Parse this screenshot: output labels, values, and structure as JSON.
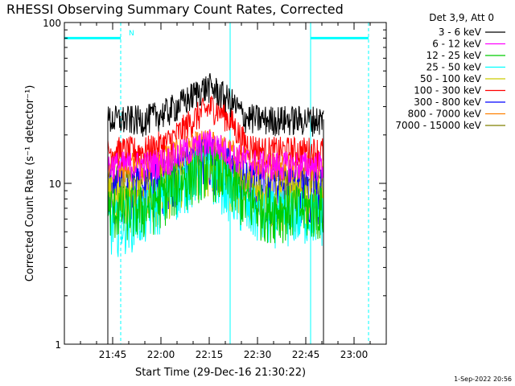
{
  "chart_data": {
    "type": "line",
    "title": "RHESSI Observing Summary Count Rates, Corrected",
    "xlabel": "Start Time (29-Dec-16 21:30:22)",
    "ylabel": "Corrected Count Rate (s⁻¹ detector⁻¹)",
    "y_scale": "log",
    "ylim": [
      1,
      100
    ],
    "xlim_minutes": [
      0,
      100
    ],
    "x_ticks": [
      {
        "label": "21:45",
        "minute": 15
      },
      {
        "label": "22:00",
        "minute": 30
      },
      {
        "label": "22:15",
        "minute": 45
      },
      {
        "label": "22:30",
        "minute": 60
      },
      {
        "label": "22:45",
        "minute": 75
      },
      {
        "label": "23:00",
        "minute": 90
      }
    ],
    "y_ticks": [
      {
        "label": "1",
        "value": 1
      },
      {
        "label": "10",
        "value": 10
      },
      {
        "label": "100",
        "value": 100
      }
    ],
    "legend_title": "Det 3,9, Att 0",
    "legend_location": "top-right-outside",
    "annotation_n": "N",
    "timestamp": "1-Sep-2022 20:56",
    "markers": {
      "solid_lines_minutes": [
        0,
        51.5,
        76.5
      ],
      "dashed_lines_minutes": [
        17.5,
        94.5
      ],
      "night_bars": [
        {
          "start": 0,
          "end": 17.5,
          "value": 80
        },
        {
          "start": 76.5,
          "end": 94.5,
          "value": 80
        }
      ],
      "color": "#00ffff"
    },
    "data_window_minutes": [
      13.5,
      80.5
    ],
    "series": [
      {
        "name": "3 - 6 keV",
        "color": "#000000",
        "points": [
          [
            14,
            25
          ],
          [
            25,
            25
          ],
          [
            32,
            28
          ],
          [
            38,
            33
          ],
          [
            42,
            38
          ],
          [
            45,
            40
          ],
          [
            48,
            37
          ],
          [
            52,
            32
          ],
          [
            56,
            26
          ],
          [
            62,
            25
          ],
          [
            72,
            25
          ],
          [
            80,
            25
          ]
        ]
      },
      {
        "name": "6 - 12 keV",
        "color": "#ff00ff",
        "points": [
          [
            14,
            13
          ],
          [
            25,
            13
          ],
          [
            32,
            14
          ],
          [
            38,
            16
          ],
          [
            42,
            17
          ],
          [
            45,
            18
          ],
          [
            48,
            17
          ],
          [
            52,
            15
          ],
          [
            56,
            14
          ],
          [
            62,
            13
          ],
          [
            80,
            13
          ]
        ]
      },
      {
        "name": "12 - 25 keV",
        "color": "#00cc00",
        "points": [
          [
            14,
            7
          ],
          [
            25,
            7
          ],
          [
            32,
            9
          ],
          [
            38,
            11
          ],
          [
            42,
            12.5
          ],
          [
            45,
            13
          ],
          [
            48,
            12
          ],
          [
            52,
            10
          ],
          [
            56,
            8
          ],
          [
            62,
            7
          ],
          [
            80,
            7
          ]
        ]
      },
      {
        "name": "25 - 50 keV",
        "color": "#00ffff",
        "points": [
          [
            14,
            5.5
          ],
          [
            25,
            6.5
          ],
          [
            32,
            8.5
          ],
          [
            38,
            10.5
          ],
          [
            42,
            12
          ],
          [
            45,
            12
          ],
          [
            48,
            11
          ],
          [
            52,
            9
          ],
          [
            56,
            7
          ],
          [
            62,
            6.5
          ],
          [
            80,
            6.5
          ]
        ]
      },
      {
        "name": "50 - 100 keV",
        "color": "#cccc00",
        "points": [
          [
            14,
            8
          ],
          [
            25,
            8
          ],
          [
            32,
            9.5
          ],
          [
            38,
            11.5
          ],
          [
            42,
            13
          ],
          [
            45,
            13.5
          ],
          [
            48,
            12.5
          ],
          [
            52,
            10.5
          ],
          [
            56,
            9
          ],
          [
            62,
            8
          ],
          [
            80,
            8
          ]
        ]
      },
      {
        "name": "100 - 300 keV",
        "color": "#ff0000",
        "points": [
          [
            14,
            16
          ],
          [
            25,
            16
          ],
          [
            32,
            18
          ],
          [
            36,
            21
          ],
          [
            40,
            25
          ],
          [
            43,
            28
          ],
          [
            46,
            30
          ],
          [
            49,
            28
          ],
          [
            52,
            24
          ],
          [
            55,
            19
          ],
          [
            58,
            17
          ],
          [
            62,
            16
          ],
          [
            80,
            16
          ]
        ]
      },
      {
        "name": "300 - 800 keV",
        "color": "#0000ff",
        "points": [
          [
            14,
            9
          ],
          [
            25,
            9
          ],
          [
            32,
            10.5
          ],
          [
            38,
            12.5
          ],
          [
            42,
            14
          ],
          [
            45,
            14.5
          ],
          [
            48,
            13.5
          ],
          [
            52,
            11.5
          ],
          [
            56,
            10
          ],
          [
            62,
            9
          ],
          [
            80,
            9
          ]
        ]
      },
      {
        "name": "800 - 7000 keV",
        "color": "#ff8000",
        "points": [
          [
            14,
            13
          ],
          [
            25,
            13
          ],
          [
            32,
            15
          ],
          [
            38,
            16.5
          ],
          [
            42,
            17.5
          ],
          [
            45,
            18
          ],
          [
            48,
            17
          ],
          [
            52,
            15.5
          ],
          [
            56,
            14
          ],
          [
            62,
            13
          ],
          [
            80,
            13
          ]
        ]
      },
      {
        "name": "7000 - 15000 keV",
        "color": "#808000",
        "points": [
          [
            14,
            11
          ],
          [
            25,
            11
          ],
          [
            32,
            12.5
          ],
          [
            38,
            14
          ],
          [
            42,
            15
          ],
          [
            45,
            15
          ],
          [
            48,
            14
          ],
          [
            52,
            12.5
          ],
          [
            56,
            11.5
          ],
          [
            62,
            11
          ],
          [
            80,
            11
          ]
        ]
      }
    ]
  }
}
